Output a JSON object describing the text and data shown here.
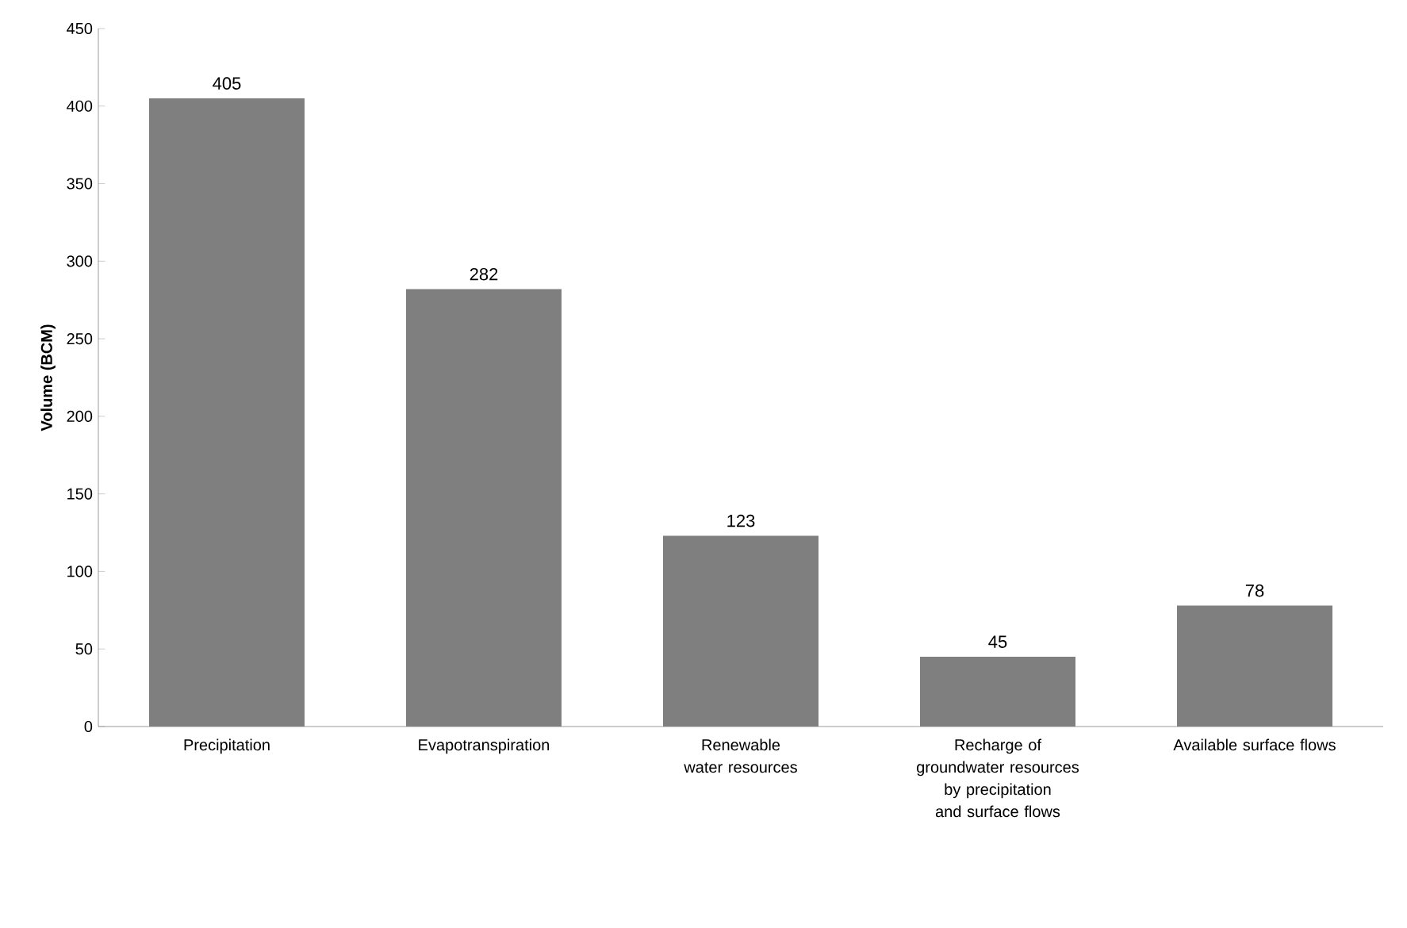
{
  "chart_data": {
    "type": "bar",
    "ylabel": "Volume (BCM)",
    "categories": [
      "Precipitation",
      "Evapotranspiration",
      "Renewable water resources",
      "Recharge of groundwater resources by precipitation and surface flows",
      "Available surface flows"
    ],
    "values": [
      405,
      282,
      123,
      45,
      78
    ],
    "color": "#7f7f7f",
    "ylim": [
      0,
      450
    ],
    "yticks": [
      0,
      50,
      100,
      150,
      200,
      250,
      300,
      350,
      400,
      450
    ],
    "data_labels": true
  }
}
